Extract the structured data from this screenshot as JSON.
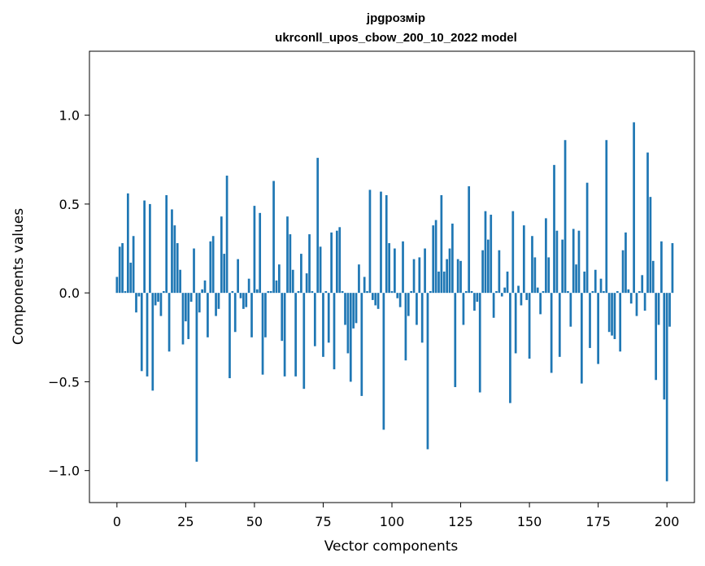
{
  "chart_data": {
    "type": "bar",
    "title": "jpgрозмір",
    "subtitle": "ukrconll_upos_cbow_200_10_2022 model",
    "xlabel": "Vector components",
    "ylabel": "Components values",
    "xlim": [
      -10,
      210
    ],
    "ylim": [
      -1.18,
      1.36
    ],
    "xticks": [
      0,
      25,
      50,
      75,
      100,
      125,
      150,
      175,
      200
    ],
    "yticks": [
      -1.0,
      -0.5,
      0.0,
      0.5,
      1.0
    ],
    "ytick_labels": [
      "−1.0",
      "−0.5",
      "0.0",
      "0.5",
      "1.0"
    ],
    "xtick_labels": [
      "0",
      "25",
      "50",
      "75",
      "100",
      "125",
      "150",
      "175",
      "200"
    ],
    "color": "#1f77b4",
    "grid": false,
    "values": [
      0.09,
      0.26,
      0.28,
      0.01,
      0.56,
      0.17,
      0.32,
      -0.11,
      -0.02,
      -0.44,
      0.52,
      -0.47,
      0.5,
      -0.55,
      -0.07,
      -0.05,
      -0.13,
      0.01,
      0.55,
      -0.33,
      0.47,
      0.38,
      0.28,
      0.13,
      -0.29,
      -0.16,
      -0.26,
      -0.05,
      0.25,
      -0.95,
      -0.11,
      0.02,
      0.07,
      -0.25,
      0.29,
      0.32,
      -0.13,
      -0.09,
      0.43,
      0.22,
      0.66,
      -0.48,
      0.01,
      -0.22,
      0.19,
      -0.03,
      -0.09,
      -0.08,
      0.08,
      -0.25,
      0.49,
      0.02,
      0.45,
      -0.46,
      -0.25,
      0.01,
      0.01,
      0.63,
      0.07,
      0.16,
      -0.27,
      -0.47,
      0.43,
      0.33,
      0.13,
      -0.47,
      0.01,
      0.22,
      -0.54,
      0.11,
      0.33,
      0.01,
      -0.3,
      0.76,
      0.26,
      -0.36,
      0.01,
      -0.28,
      0.34,
      -0.43,
      0.35,
      0.37,
      0.01,
      -0.18,
      -0.34,
      -0.5,
      -0.2,
      -0.17,
      0.16,
      -0.58,
      0.09,
      0.01,
      0.58,
      -0.04,
      -0.07,
      -0.09,
      0.57,
      -0.77,
      0.55,
      0.28,
      0.01,
      0.25,
      -0.03,
      -0.08,
      0.29,
      -0.38,
      -0.13,
      0.01,
      0.19,
      -0.18,
      0.2,
      -0.28,
      0.25,
      -0.88,
      0.01,
      0.38,
      0.41,
      0.12,
      0.55,
      0.12,
      0.19,
      0.25,
      0.39,
      -0.53,
      0.19,
      0.18,
      -0.18,
      0.01,
      0.6,
      0.01,
      -0.1,
      -0.05,
      -0.56,
      0.24,
      0.46,
      0.3,
      0.44,
      -0.14,
      0.01,
      0.24,
      -0.02,
      0.03,
      0.12,
      -0.62,
      0.46,
      -0.34,
      0.04,
      -0.07,
      0.38,
      -0.04,
      -0.37,
      0.32,
      0.2,
      0.03,
      -0.12,
      0.01,
      0.42,
      0.2,
      -0.45,
      0.72,
      0.35,
      -0.36,
      0.3,
      0.86,
      0.01,
      -0.19,
      0.36,
      0.16,
      0.35,
      -0.51,
      0.12,
      0.62,
      -0.31,
      0.01,
      0.13,
      -0.4,
      0.08,
      0.01,
      0.86,
      -0.22,
      -0.24,
      -0.26,
      0.01,
      -0.33,
      0.24,
      0.34,
      0.02,
      -0.06,
      0.96,
      -0.13,
      0.01,
      0.1,
      -0.1,
      0.79,
      0.54,
      0.18,
      -0.49,
      -0.18,
      0.29,
      -0.6,
      -1.06,
      -0.19,
      0.28
    ]
  }
}
